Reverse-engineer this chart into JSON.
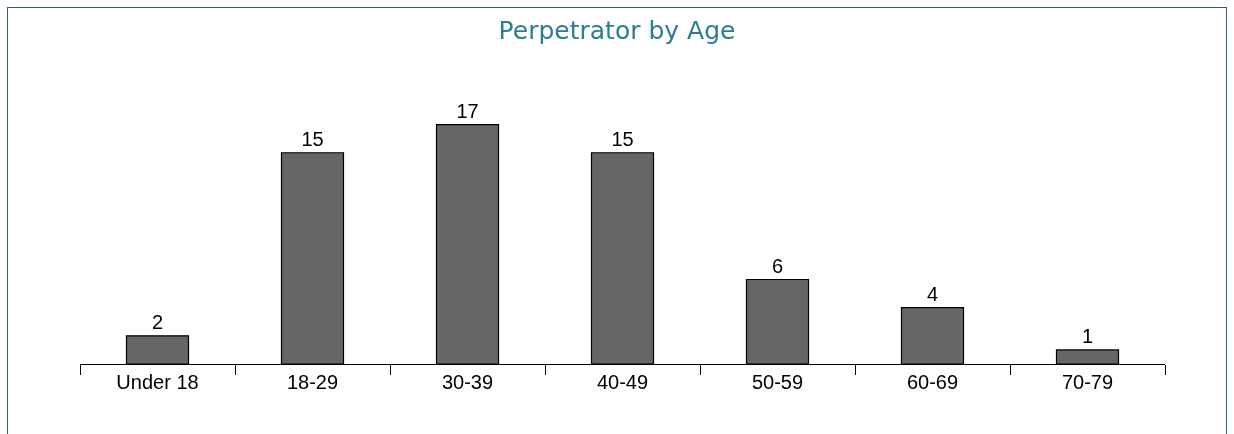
{
  "chart_data": {
    "type": "bar",
    "title": "Perpetrator by Age",
    "categories": [
      "Under 18",
      "18-29",
      "30-39",
      "40-49",
      "50-59",
      "60-69",
      "70-79"
    ],
    "values": [
      2,
      15,
      17,
      15,
      6,
      4,
      1
    ],
    "color": "#666666",
    "data_labels": true,
    "grid": false,
    "legend": false
  }
}
